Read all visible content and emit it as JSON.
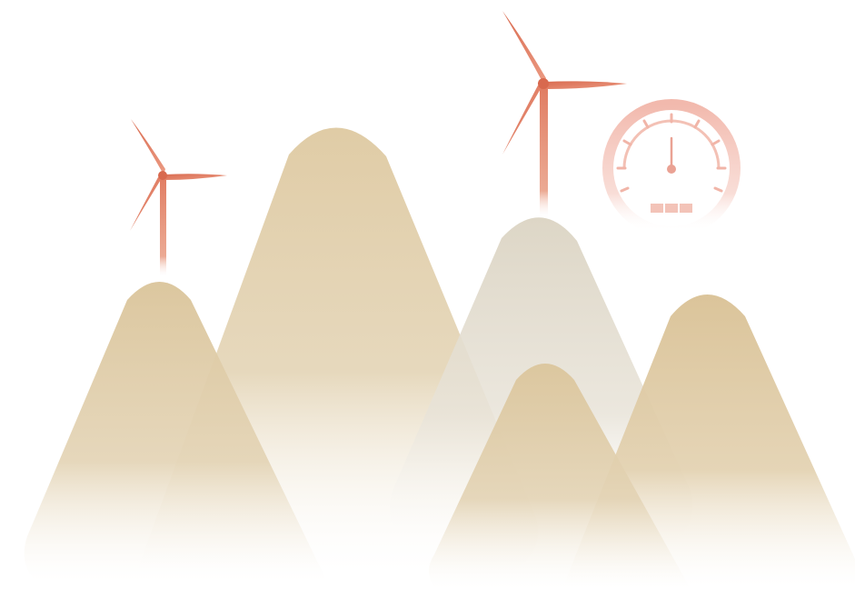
{
  "colors": {
    "background": "#ffffff",
    "mountain_tan": "#dcc79f",
    "mountain_tan_light": "#e1d0ae",
    "mountain_grey": "#ddd6c6",
    "turbine": "#e07a5f",
    "turbine_light": "#e89a80",
    "gauge": "#f2b9ad",
    "gauge_light": "#f8d8d0"
  },
  "illustration": {
    "mountains": [
      {
        "name": "mountain-left-small-peak",
        "fill": "tan"
      },
      {
        "name": "mountain-left-tall-peak",
        "fill": "tan"
      },
      {
        "name": "mountain-center-grey-peak",
        "fill": "grey"
      },
      {
        "name": "mountain-right-small-peak",
        "fill": "tan"
      },
      {
        "name": "mountain-right-peak",
        "fill": "tan"
      }
    ],
    "icons": [
      "wind-turbine-icon",
      "wind-turbine-icon",
      "speedometer-gauge-icon"
    ]
  }
}
